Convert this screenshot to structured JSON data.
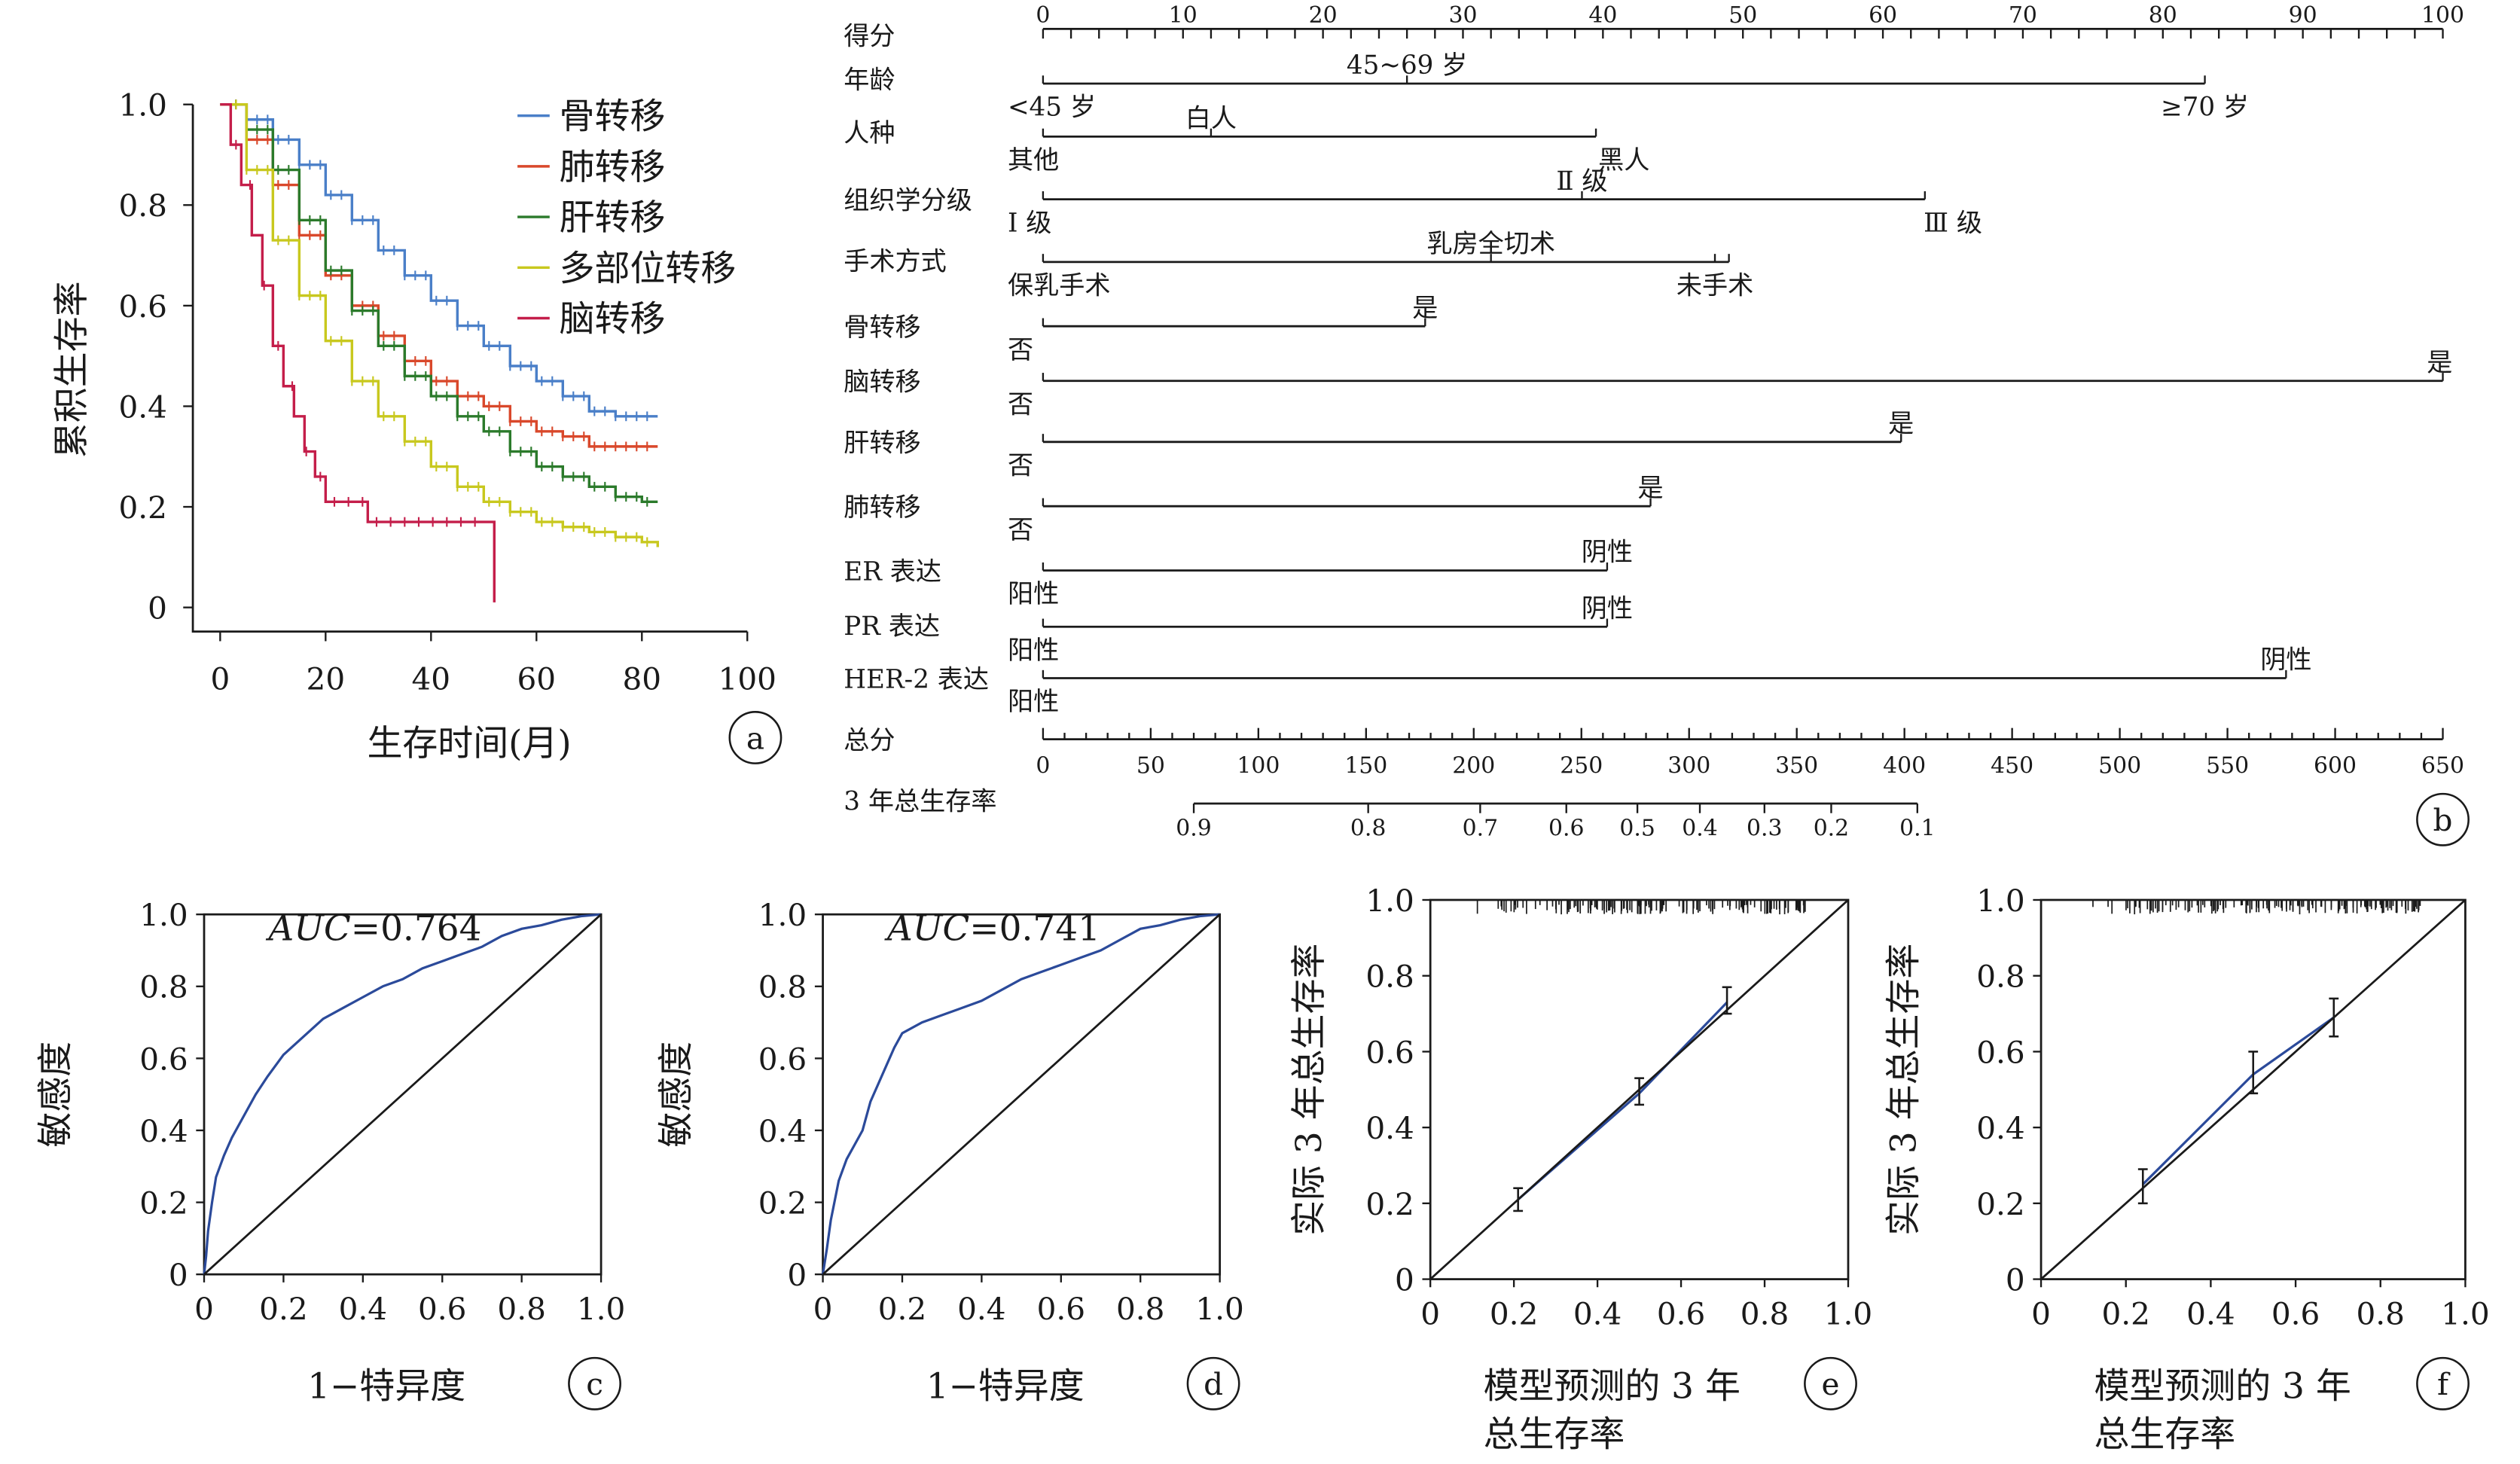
{
  "chart_data": [
    {
      "id": "a",
      "type": "line",
      "panel_label": "a",
      "xlabel": "生存时间(月)",
      "ylabel": "累积生存率",
      "x_ticks": [
        "0",
        "20",
        "40",
        "60",
        "80",
        "100"
      ],
      "y_ticks": [
        "0",
        "0.2",
        "0.4",
        "0.6",
        "0.8",
        "1.0"
      ],
      "xlim": [
        0,
        100
      ],
      "ylim": [
        0,
        1
      ],
      "legend_position": "top-right",
      "series": [
        {
          "name": "骨转移",
          "color": "#4a7fc8",
          "x": [
            0,
            5,
            10,
            15,
            20,
            25,
            30,
            35,
            40,
            45,
            50,
            55,
            60,
            65,
            70,
            75,
            80,
            83
          ],
          "y": [
            1.0,
            0.97,
            0.93,
            0.88,
            0.82,
            0.77,
            0.71,
            0.66,
            0.61,
            0.56,
            0.52,
            0.48,
            0.45,
            0.42,
            0.39,
            0.38,
            0.38,
            0.38
          ]
        },
        {
          "name": "肺转移",
          "color": "#d9482b",
          "x": [
            0,
            5,
            10,
            15,
            20,
            25,
            30,
            35,
            40,
            45,
            50,
            55,
            60,
            65,
            70,
            75,
            80,
            83
          ],
          "y": [
            1.0,
            0.93,
            0.84,
            0.74,
            0.66,
            0.6,
            0.54,
            0.49,
            0.45,
            0.42,
            0.4,
            0.37,
            0.35,
            0.34,
            0.32,
            0.32,
            0.32,
            0.32
          ]
        },
        {
          "name": "肝转移",
          "color": "#2b7a2b",
          "x": [
            0,
            5,
            10,
            15,
            20,
            25,
            30,
            35,
            40,
            45,
            50,
            55,
            60,
            65,
            70,
            75,
            80,
            83
          ],
          "y": [
            1.0,
            0.95,
            0.87,
            0.77,
            0.67,
            0.59,
            0.52,
            0.46,
            0.42,
            0.38,
            0.35,
            0.31,
            0.28,
            0.26,
            0.24,
            0.22,
            0.21,
            0.21
          ]
        },
        {
          "name": "多部位转移",
          "color": "#c8c81e",
          "x": [
            0,
            5,
            10,
            15,
            20,
            25,
            30,
            35,
            40,
            45,
            50,
            55,
            60,
            65,
            70,
            75,
            80,
            83
          ],
          "y": [
            1.0,
            0.87,
            0.73,
            0.62,
            0.53,
            0.45,
            0.38,
            0.33,
            0.28,
            0.24,
            0.21,
            0.19,
            0.17,
            0.16,
            0.15,
            0.14,
            0.13,
            0.12
          ]
        },
        {
          "name": "脑转移",
          "color": "#c41e4a",
          "x": [
            0,
            2,
            4,
            6,
            8,
            10,
            12,
            14,
            16,
            18,
            20,
            24,
            28,
            32,
            40,
            48,
            52,
            52
          ],
          "y": [
            1.0,
            0.92,
            0.84,
            0.74,
            0.64,
            0.52,
            0.44,
            0.38,
            0.31,
            0.26,
            0.21,
            0.21,
            0.17,
            0.17,
            0.17,
            0.17,
            0.17,
            0.01
          ]
        }
      ]
    },
    {
      "id": "b",
      "type": "table",
      "panel_label": "b",
      "points_label": "得分",
      "points_ticks": [
        "0",
        "10",
        "20",
        "30",
        "40",
        "50",
        "60",
        "70",
        "80",
        "90",
        "100"
      ],
      "rows": [
        {
          "label": "年龄",
          "start": 0,
          "end": 83,
          "marks": [
            {
              "text": "<45 岁",
              "at": 0,
              "side": "below"
            },
            {
              "text": "45~69 岁",
              "at": 26,
              "side": "above"
            },
            {
              "text": "≥70 岁",
              "at": 83,
              "side": "below"
            }
          ]
        },
        {
          "label": "人种",
          "start": 0,
          "end": 39.5,
          "marks": [
            {
              "text": "其他",
              "at": 0,
              "side": "below"
            },
            {
              "text": "白人",
              "at": 12,
              "side": "above"
            },
            {
              "text": "黑人",
              "at": 41.5,
              "side": "below"
            }
          ]
        },
        {
          "label": "组织学分级",
          "start": 0,
          "end": 63,
          "marks": [
            {
              "text": "Ⅰ 级",
              "at": 0,
              "side": "below"
            },
            {
              "text": "Ⅱ 级",
              "at": 38.5,
              "side": "above"
            },
            {
              "text": "Ⅲ 级",
              "at": 65,
              "side": "below"
            }
          ]
        },
        {
          "label": "手术方式",
          "start": 0,
          "end": 49,
          "marks": [
            {
              "text": "保乳手术",
              "at": 0,
              "side": "below"
            },
            {
              "text": "乳房全切术",
              "at": 32,
              "side": "above"
            },
            {
              "text": "未手术",
              "at": 48,
              "side": "below"
            }
          ]
        },
        {
          "label": "骨转移",
          "start": 0,
          "end": 27.3,
          "marks": [
            {
              "text": "否",
              "at": 0,
              "side": "below"
            },
            {
              "text": "是",
              "at": 27.3,
              "side": "above"
            }
          ]
        },
        {
          "label": "脑转移",
          "start": 0,
          "end": 100,
          "marks": [
            {
              "text": "否",
              "at": 0,
              "side": "below"
            },
            {
              "text": "是",
              "at": 100,
              "side": "above"
            }
          ]
        },
        {
          "label": "肝转移",
          "start": 0,
          "end": 61.3,
          "marks": [
            {
              "text": "否",
              "at": 0,
              "side": "below"
            },
            {
              "text": "是",
              "at": 61.3,
              "side": "above"
            }
          ]
        },
        {
          "label": "肺转移",
          "start": 0,
          "end": 43.4,
          "marks": [
            {
              "text": "否",
              "at": 0,
              "side": "below"
            },
            {
              "text": "是",
              "at": 43.4,
              "side": "above"
            }
          ]
        },
        {
          "label": "ER 表达",
          "start": 0,
          "end": 40.3,
          "marks": [
            {
              "text": "阳性",
              "at": 0,
              "side": "below"
            },
            {
              "text": "阴性",
              "at": 40.3,
              "side": "above"
            }
          ]
        },
        {
          "label": "PR 表达",
          "start": 0,
          "end": 40.3,
          "marks": [
            {
              "text": "阳性",
              "at": 0,
              "side": "below"
            },
            {
              "text": "阴性",
              "at": 40.3,
              "side": "above"
            }
          ]
        },
        {
          "label": "HER-2 表达",
          "start": 0,
          "end": 88.8,
          "marks": [
            {
              "text": "阳性",
              "at": 0,
              "side": "below"
            },
            {
              "text": "阴性",
              "at": 88.8,
              "side": "above"
            }
          ]
        }
      ],
      "total_label": "总分",
      "total_ticks": [
        "0",
        "50",
        "100",
        "150",
        "200",
        "250",
        "300",
        "350",
        "400",
        "450",
        "500",
        "550",
        "600",
        "650"
      ],
      "survival_label": "3 年总生存率",
      "survival_ticks": [
        {
          "text": "0.9",
          "total": 70
        },
        {
          "text": "0.8",
          "total": 151
        },
        {
          "text": "0.7",
          "total": 203
        },
        {
          "text": "0.6",
          "total": 243
        },
        {
          "text": "0.5",
          "total": 276
        },
        {
          "text": "0.4",
          "total": 305
        },
        {
          "text": "0.3",
          "total": 335
        },
        {
          "text": "0.2",
          "total": 366
        },
        {
          "text": "0.1",
          "total": 406
        }
      ]
    },
    {
      "id": "c",
      "type": "line",
      "panel_label": "c",
      "xlabel": "1−特异度",
      "ylabel": "敏感度",
      "annotation": "AUC=0.764",
      "annotation_italic": "AUC",
      "annotation_value": "=0.764",
      "x_ticks": [
        "0",
        "0.2",
        "0.4",
        "0.6",
        "0.8",
        "1.0"
      ],
      "y_ticks": [
        "0",
        "0.2",
        "0.4",
        "0.6",
        "0.8",
        "1.0"
      ],
      "xlim": [
        0,
        1
      ],
      "ylim": [
        0,
        1
      ],
      "series": [
        {
          "color": "#2b4a9a",
          "x": [
            0,
            0.005,
            0.01,
            0.02,
            0.03,
            0.05,
            0.07,
            0.1,
            0.13,
            0.16,
            0.2,
            0.25,
            0.3,
            0.35,
            0.4,
            0.45,
            0.5,
            0.55,
            0.6,
            0.65,
            0.7,
            0.75,
            0.8,
            0.85,
            0.9,
            0.95,
            1.0
          ],
          "y": [
            0,
            0.05,
            0.12,
            0.2,
            0.27,
            0.33,
            0.38,
            0.44,
            0.5,
            0.55,
            0.61,
            0.66,
            0.71,
            0.74,
            0.77,
            0.8,
            0.82,
            0.85,
            0.87,
            0.89,
            0.91,
            0.94,
            0.96,
            0.97,
            0.985,
            0.995,
            1.0
          ]
        },
        {
          "color": "#1a1a1a",
          "x": [
            0,
            1
          ],
          "y": [
            0,
            1
          ]
        }
      ]
    },
    {
      "id": "d",
      "type": "line",
      "panel_label": "d",
      "xlabel": "1−特异度",
      "ylabel": "敏感度",
      "annotation": "AUC=0.741",
      "annotation_italic": "AUC",
      "annotation_value": "=0.741",
      "x_ticks": [
        "0",
        "0.2",
        "0.4",
        "0.6",
        "0.8",
        "1.0"
      ],
      "y_ticks": [
        "0",
        "0.2",
        "0.4",
        "0.6",
        "0.8",
        "1.0"
      ],
      "xlim": [
        0,
        1
      ],
      "ylim": [
        0,
        1
      ],
      "series": [
        {
          "color": "#2b4a9a",
          "x": [
            0,
            0.01,
            0.02,
            0.04,
            0.06,
            0.08,
            0.1,
            0.12,
            0.14,
            0.16,
            0.18,
            0.2,
            0.25,
            0.3,
            0.35,
            0.4,
            0.45,
            0.5,
            0.55,
            0.6,
            0.65,
            0.7,
            0.75,
            0.8,
            0.85,
            0.9,
            0.95,
            1.0
          ],
          "y": [
            0,
            0.07,
            0.15,
            0.26,
            0.32,
            0.36,
            0.4,
            0.48,
            0.53,
            0.58,
            0.63,
            0.67,
            0.7,
            0.72,
            0.74,
            0.76,
            0.79,
            0.82,
            0.84,
            0.86,
            0.88,
            0.9,
            0.93,
            0.96,
            0.97,
            0.985,
            0.995,
            1.0
          ]
        },
        {
          "color": "#1a1a1a",
          "x": [
            0,
            1
          ],
          "y": [
            0,
            1
          ]
        }
      ]
    },
    {
      "id": "e",
      "type": "line",
      "panel_label": "e",
      "xlabel": "模型预测的 3 年总生存率",
      "xlabel_line1": "模型预测的 3 年",
      "xlabel_line2": "总生存率",
      "ylabel": "实际 3 年总生存率",
      "x_ticks": [
        "0",
        "0.2",
        "0.4",
        "0.6",
        "0.8",
        "1.0"
      ],
      "y_ticks": [
        "0",
        "0.2",
        "0.4",
        "0.6",
        "0.8",
        "1.0"
      ],
      "xlim": [
        0,
        1
      ],
      "ylim": [
        0,
        1
      ],
      "points": [
        {
          "x": 0.21,
          "y": 0.21,
          "lo": 0.18,
          "hi": 0.24
        },
        {
          "x": 0.5,
          "y": 0.49,
          "lo": 0.46,
          "hi": 0.53
        },
        {
          "x": 0.71,
          "y": 0.73,
          "lo": 0.7,
          "hi": 0.77
        }
      ],
      "series": [
        {
          "color": "#2b4a9a",
          "x": [
            0.21,
            0.5,
            0.71
          ],
          "y": [
            0.21,
            0.49,
            0.73
          ]
        },
        {
          "color": "#1a1a1a",
          "x": [
            0,
            1
          ],
          "y": [
            0,
            1
          ]
        }
      ],
      "rug": true
    },
    {
      "id": "f",
      "type": "line",
      "panel_label": "f",
      "xlabel": "模型预测的 3 年总生存率",
      "xlabel_line1": "模型预测的 3 年",
      "xlabel_line2": "总生存率",
      "ylabel": "实际 3 年总生存率",
      "x_ticks": [
        "0",
        "0.2",
        "0.4",
        "0.6",
        "0.8",
        "1.0"
      ],
      "y_ticks": [
        "0",
        "0.2",
        "0.4",
        "0.6",
        "0.8",
        "1.0"
      ],
      "xlim": [
        0,
        1
      ],
      "ylim": [
        0,
        1
      ],
      "points": [
        {
          "x": 0.24,
          "y": 0.25,
          "lo": 0.2,
          "hi": 0.29
        },
        {
          "x": 0.5,
          "y": 0.54,
          "lo": 0.49,
          "hi": 0.6
        },
        {
          "x": 0.69,
          "y": 0.69,
          "lo": 0.64,
          "hi": 0.74
        }
      ],
      "series": [
        {
          "color": "#2b4a9a",
          "x": [
            0.24,
            0.5,
            0.69
          ],
          "y": [
            0.25,
            0.54,
            0.69
          ]
        },
        {
          "color": "#1a1a1a",
          "x": [
            0,
            1
          ],
          "y": [
            0,
            1
          ]
        }
      ],
      "rug": true
    }
  ]
}
